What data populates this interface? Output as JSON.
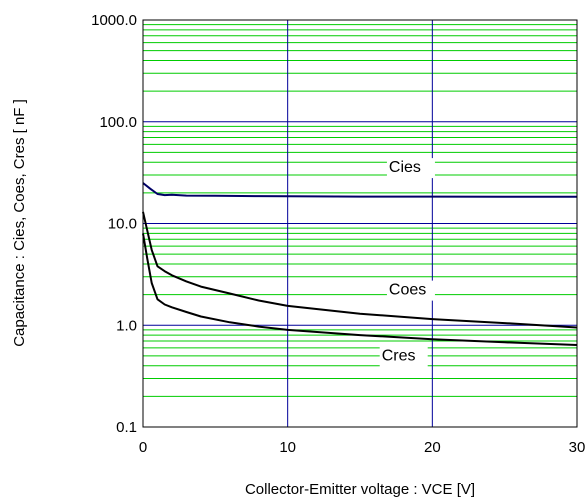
{
  "chart_data": {
    "type": "line",
    "title": "",
    "xlabel": "Collector-Emitter voltage : VCE [V]",
    "ylabel": "Capacitance  :  Cies, Coes, Cres  [ nF ]",
    "xlim": [
      0,
      30
    ],
    "ylim": [
      0.1,
      1000
    ],
    "yscale": "log",
    "x_ticks": [
      0,
      10,
      20,
      30
    ],
    "x_tick_labels": [
      "0",
      "10",
      "20",
      "30"
    ],
    "y_ticks": [
      0.1,
      1,
      10,
      100,
      1000
    ],
    "y_tick_labels": [
      "0.1",
      "1.0",
      "10.0",
      "100.0",
      "1000.0"
    ],
    "grid": true,
    "colors": {
      "minor_grid": "#00cc00",
      "major_grid": "#000099",
      "cies": "#000066",
      "coes": "#000000",
      "cres": "#000000"
    },
    "series": [
      {
        "name": "Cies",
        "color": "#000066",
        "x": [
          0,
          0.5,
          1,
          1.5,
          2,
          3,
          5,
          8,
          10,
          15,
          20,
          25,
          30
        ],
        "y": [
          25,
          22,
          19.5,
          19,
          19.2,
          18.8,
          18.7,
          18.6,
          18.5,
          18.4,
          18.4,
          18.3,
          18.3
        ]
      },
      {
        "name": "Coes",
        "color": "#000000",
        "x": [
          0,
          0.3,
          0.6,
          1,
          1.5,
          2,
          3,
          4,
          6,
          8,
          10,
          15,
          20,
          25,
          30
        ],
        "y": [
          13,
          8.5,
          5.5,
          3.8,
          3.4,
          3.1,
          2.7,
          2.4,
          2.05,
          1.75,
          1.55,
          1.3,
          1.15,
          1.05,
          0.95
        ]
      },
      {
        "name": "Cres",
        "color": "#000000",
        "x": [
          0,
          0.3,
          0.6,
          1,
          1.5,
          2,
          3,
          4,
          6,
          8,
          10,
          15,
          20,
          25,
          30
        ],
        "y": [
          8.0,
          4.5,
          2.6,
          1.8,
          1.6,
          1.5,
          1.35,
          1.22,
          1.07,
          0.97,
          0.9,
          0.8,
          0.73,
          0.68,
          0.64
        ]
      }
    ]
  }
}
